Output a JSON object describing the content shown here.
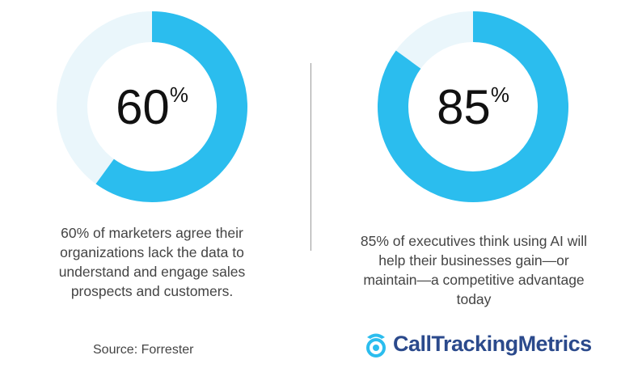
{
  "chart_data": [
    {
      "type": "pie",
      "subtype": "donut",
      "value": 60,
      "label": "60%",
      "caption": "60% of marketers agree their organizations lack the data to understand and engage sales prospects and customers.",
      "colors": {
        "fill": "#2bbdee",
        "track": "#eaf6fb"
      }
    },
    {
      "type": "pie",
      "subtype": "donut",
      "value": 85,
      "label": "85%",
      "caption": "85% of executives think using AI will help their businesses gain—or maintain—a competitive advantage today",
      "colors": {
        "fill": "#2bbdee",
        "track": "#eaf6fb"
      }
    }
  ],
  "left": {
    "num": "60",
    "pct": "%",
    "caption": "60% of marketers agree their organizations lack the data to understand and engage sales prospects and customers."
  },
  "right": {
    "num": "85",
    "pct": "%",
    "caption": "85% of executives think using AI will help their businesses gain—or maintain—a competitive advantage today"
  },
  "source": "Source: Forrester",
  "logo": {
    "text": "CallTrackingMetrics",
    "color": "#2b4a8c",
    "icon": "phone-target-icon",
    "icon_color": "#2bbdee"
  }
}
